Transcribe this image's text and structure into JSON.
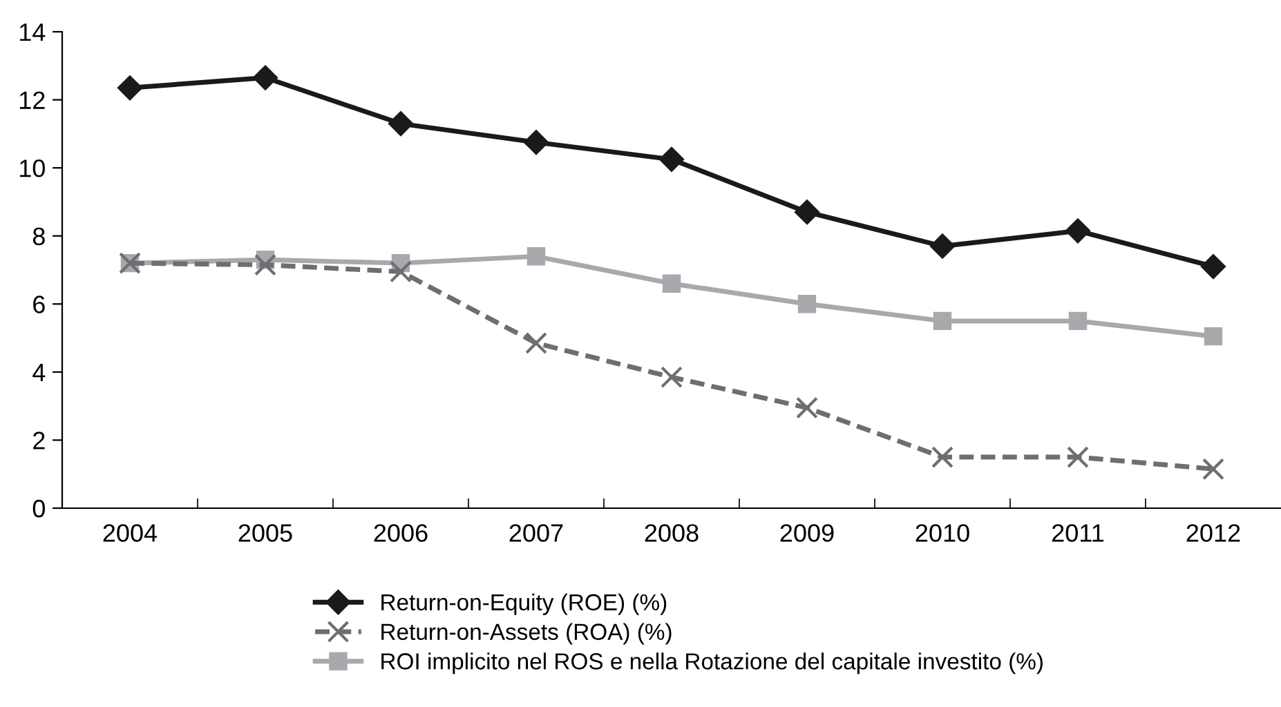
{
  "chart_data": {
    "type": "line",
    "categories": [
      "2004",
      "2005",
      "2006",
      "2007",
      "2008",
      "2009",
      "2010",
      "2011",
      "2012"
    ],
    "series": [
      {
        "name": "Return-on-Equity (ROE) (%)",
        "color": "#1a1a1a",
        "marker": "diamond",
        "line_style": "solid",
        "values": [
          12.35,
          12.65,
          11.3,
          10.75,
          10.25,
          8.7,
          7.7,
          8.15,
          7.1
        ]
      },
      {
        "name": "Return-on-Assets (ROA) (%)",
        "color": "#6d6e71",
        "marker": "cross",
        "line_style": "dashed",
        "values": [
          7.2,
          7.15,
          6.95,
          4.85,
          3.85,
          2.95,
          1.5,
          1.5,
          1.15
        ]
      },
      {
        "name": "ROI implicito nel ROS e nella Rotazione del capitale investito (%)",
        "color": "#a7a9ac",
        "marker": "square",
        "line_style": "solid",
        "values": [
          7.2,
          7.3,
          7.2,
          7.4,
          6.6,
          6.0,
          5.5,
          5.5,
          5.05
        ]
      }
    ],
    "ylim": [
      0,
      14
    ],
    "yticks": [
      0,
      2,
      4,
      6,
      8,
      10,
      12,
      14
    ],
    "grid": false,
    "legend": "bottom"
  }
}
